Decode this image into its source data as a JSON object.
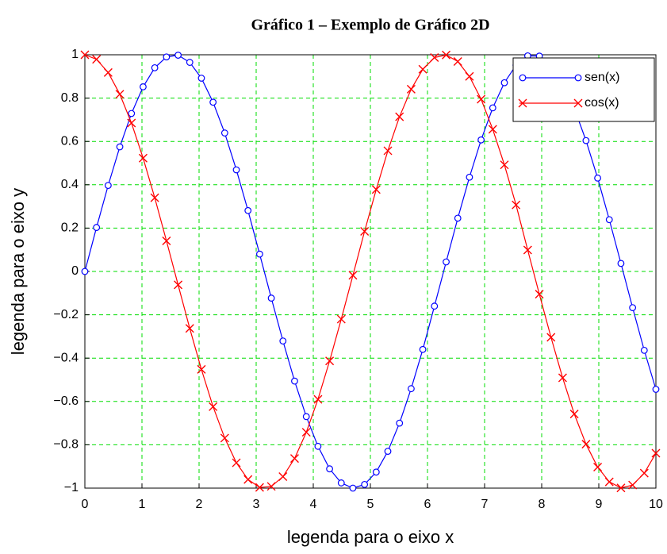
{
  "chart_data": {
    "type": "line",
    "title": "Gráfico 1 – Exemplo de Gráfico 2D",
    "xlabel": "legenda para o eixo x",
    "ylabel": "legenda para o eixo y",
    "x": [
      0,
      0.204,
      0.408,
      0.612,
      0.816,
      1.02,
      1.224,
      1.429,
      1.633,
      1.837,
      2.041,
      2.245,
      2.449,
      2.653,
      2.857,
      3.061,
      3.265,
      3.469,
      3.673,
      3.878,
      4.082,
      4.286,
      4.49,
      4.694,
      4.898,
      5.102,
      5.306,
      5.51,
      5.714,
      5.918,
      6.122,
      6.327,
      6.531,
      6.735,
      6.939,
      7.143,
      7.347,
      7.551,
      7.755,
      7.959,
      8.163,
      8.367,
      8.571,
      8.776,
      8.98,
      9.184,
      9.388,
      9.592,
      9.796,
      10
    ],
    "series": [
      {
        "name": "sen(x)",
        "color": "#0000ff",
        "marker": "o",
        "values": [
          0,
          0.203,
          0.397,
          0.575,
          0.729,
          0.852,
          0.94,
          0.99,
          0.998,
          0.965,
          0.892,
          0.781,
          0.639,
          0.469,
          0.281,
          0.08,
          -0.123,
          -0.321,
          -0.506,
          -0.67,
          -0.807,
          -0.911,
          -0.976,
          -1.0,
          -0.983,
          -0.926,
          -0.83,
          -0.7,
          -0.541,
          -0.36,
          -0.16,
          0.044,
          0.246,
          0.435,
          0.607,
          0.755,
          0.871,
          0.952,
          0.995,
          0.994,
          0.953,
          0.871,
          0.753,
          0.604,
          0.431,
          0.239,
          0.037,
          -0.167,
          -0.364,
          -0.544
        ]
      },
      {
        "name": "cos(x)",
        "color": "#ff0000",
        "marker": "x",
        "values": [
          1,
          0.979,
          0.918,
          0.818,
          0.685,
          0.523,
          0.34,
          0.141,
          -0.062,
          -0.263,
          -0.452,
          -0.624,
          -0.769,
          -0.883,
          -0.96,
          -0.997,
          -0.992,
          -0.947,
          -0.863,
          -0.742,
          -0.59,
          -0.413,
          -0.22,
          -0.018,
          0.185,
          0.378,
          0.557,
          0.714,
          0.841,
          0.933,
          0.987,
          0.999,
          0.969,
          0.9,
          0.795,
          0.656,
          0.492,
          0.307,
          0.099,
          -0.105,
          -0.304,
          -0.491,
          -0.658,
          -0.797,
          -0.903,
          -0.971,
          -0.999,
          -0.986,
          -0.931,
          -0.839
        ]
      }
    ],
    "xlim": [
      0,
      10
    ],
    "xticks": [
      0,
      1,
      2,
      3,
      4,
      5,
      6,
      7,
      8,
      9,
      10
    ],
    "ylim": [
      -1,
      1
    ],
    "yticks": [
      {
        "value": -1,
        "label": "−1"
      },
      {
        "value": -0.8,
        "label": "−0.8"
      },
      {
        "value": -0.6,
        "label": "−0.6"
      },
      {
        "value": -0.4,
        "label": "−0.4"
      },
      {
        "value": -0.2,
        "label": "−0.2"
      },
      0,
      0.2,
      0.4,
      0.6,
      0.8,
      1
    ],
    "grid": true,
    "grid_color": "#00dd00",
    "legend": "upper right"
  }
}
